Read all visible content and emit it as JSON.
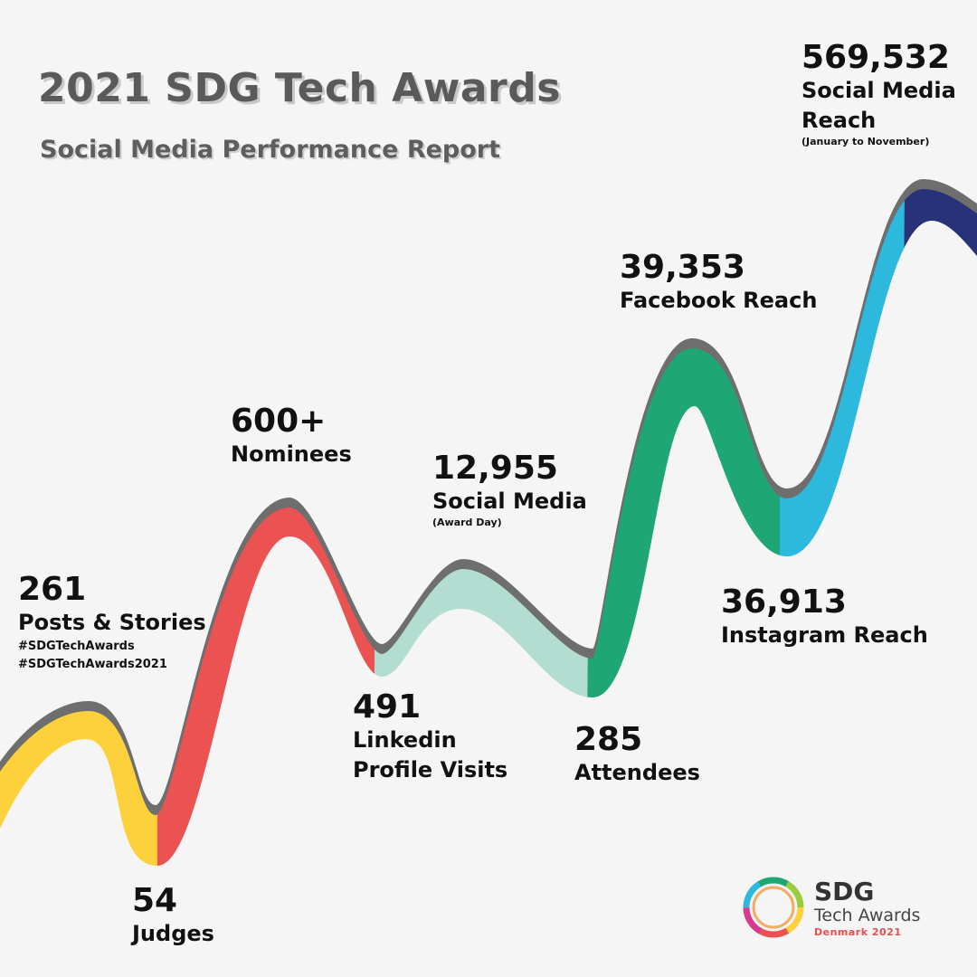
{
  "header": {
    "title": "2021 SDG Tech Awards",
    "subtitle": "Social Media Performance Report"
  },
  "colors": {
    "background": "#f5f5f5",
    "shadow": "#6e6e6e",
    "yellow": "#fdd13c",
    "red": "#eb5252",
    "mint": "#b2ddd0",
    "green": "#1ea674",
    "sky": "#2db8de",
    "navy": "#273278"
  },
  "stats": {
    "posts": {
      "value": "261",
      "label": "Posts & Stories",
      "tag1": "#SDGTechAwards",
      "tag2": "#SDGTechAwards2021"
    },
    "judges": {
      "value": "54",
      "label": "Judges"
    },
    "nominees": {
      "value": "600+",
      "label": "Nominees"
    },
    "linkedin": {
      "value": "491",
      "label1": "Linkedin",
      "label2": "Profile Visits"
    },
    "award_day": {
      "value": "12,955",
      "label": "Social Media",
      "note": "(Award Day)"
    },
    "attendees": {
      "value": "285",
      "label": "Attendees"
    },
    "facebook": {
      "value": "39,353",
      "label": "Facebook Reach"
    },
    "instagram": {
      "value": "36,913",
      "label": "Instagram Reach"
    },
    "total": {
      "value": "569,532",
      "label1": "Social Media",
      "label2": "Reach",
      "note": "(January to November)"
    }
  },
  "logo": {
    "name": "SDG",
    "subname": "Tech Awards",
    "edition": "Denmark 2021",
    "ring_icon": "multicolor-ring-icon"
  }
}
